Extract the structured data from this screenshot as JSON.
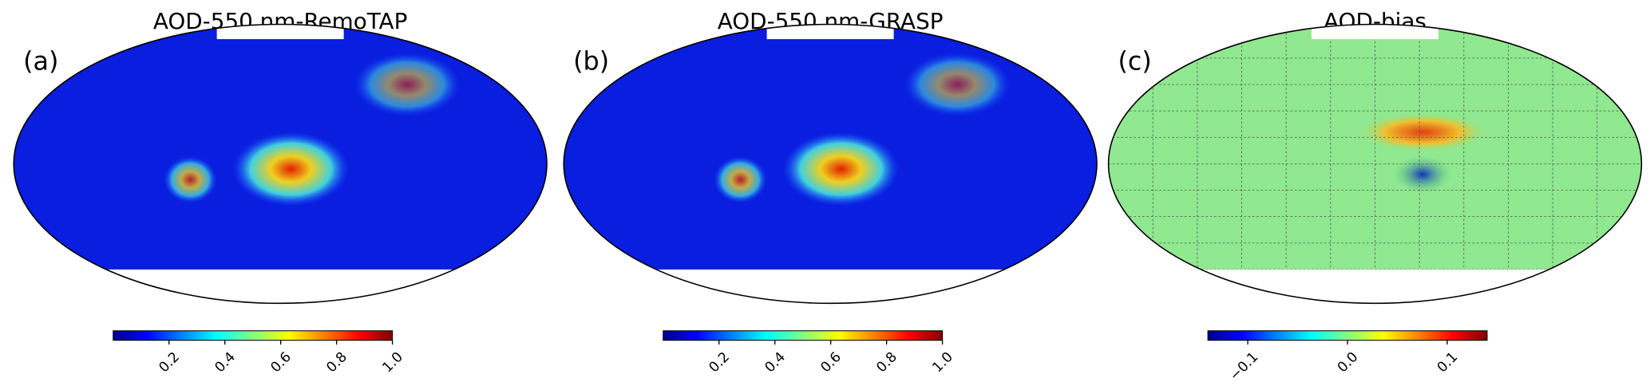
{
  "panels": [
    {
      "label": "(a)",
      "title": "AOD-550 nm-RemoTAP",
      "colorbar": {
        "lim": [
          0,
          1
        ],
        "ticks": [
          0.2,
          0.4,
          0.6,
          0.8,
          {
            "value": 1,
            "label": "1.0"
          }
        ]
      }
    },
    {
      "label": "(b)",
      "title": "AOD-550 nm-GRASP",
      "colorbar": {
        "lim": [
          0,
          1
        ],
        "ticks": [
          0.2,
          0.4,
          0.6,
          0.8,
          {
            "value": 1,
            "label": "1.0"
          }
        ]
      }
    },
    {
      "label": "(c)",
      "title": "AOD-bias",
      "colorbar": {
        "lim": [
          -0.14,
          0.14
        ],
        "ticks": [
          {
            "value": -0.1,
            "label": "−0.1"
          },
          {
            "value": 0,
            "label": "0.0"
          },
          0.1
        ]
      }
    }
  ]
}
